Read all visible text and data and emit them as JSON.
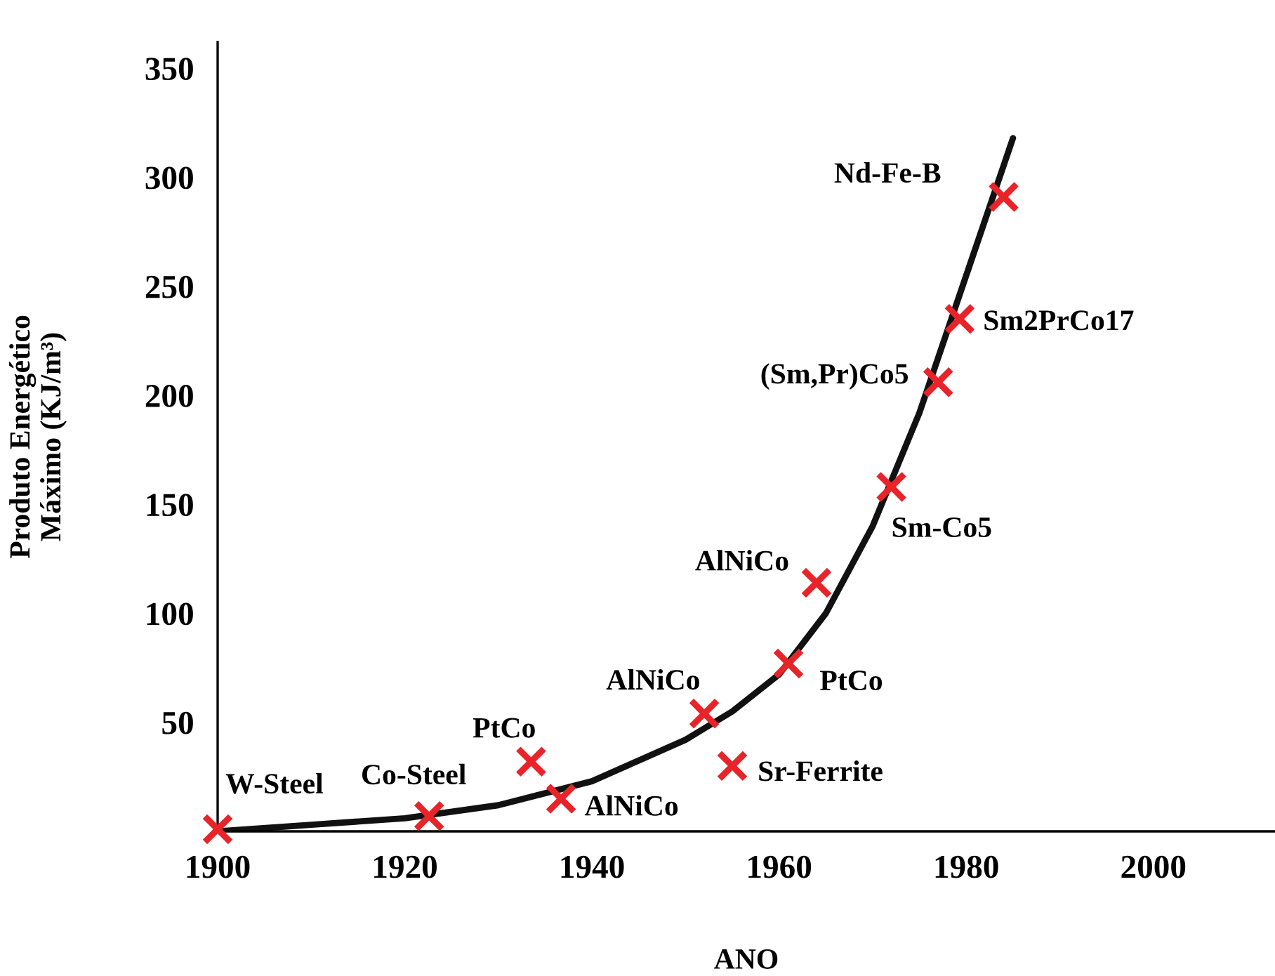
{
  "chart_data": {
    "type": "scatter",
    "xlabel": "ANO",
    "ylabel": "Produto Energético\nMáximo (KJ/m³)",
    "xlim": [
      1900,
      2013
    ],
    "ylim": [
      0,
      362
    ],
    "xticks": [
      1900,
      1920,
      1940,
      1960,
      1980,
      2000
    ],
    "yticks": [
      50,
      100,
      150,
      200,
      250,
      300,
      350
    ],
    "grid": false,
    "legend": false,
    "series": [
      {
        "type": "line",
        "color": "#111111",
        "line_style": "solid",
        "marker": "none",
        "x": [
          1900,
          1910,
          1920,
          1930,
          1940,
          1950,
          1955,
          1960,
          1965,
          1970,
          1975,
          1980,
          1985
        ],
        "values": [
          0,
          3,
          6,
          12,
          23,
          42,
          55,
          72,
          100,
          140,
          192,
          255,
          318
        ]
      },
      {
        "color": "#e8232a",
        "marker": "cross",
        "x": [
          1900,
          1922.6,
          1933.5,
          1936.7,
          1952,
          1955,
          1961,
          1964,
          1972,
          1977,
          1979.3,
          1984
        ],
        "values": [
          1,
          7,
          32,
          15,
          54,
          30,
          77,
          114,
          158,
          206,
          235,
          291
        ]
      }
    ],
    "annotations": [
      {
        "text": "W-Steel",
        "x": 1900,
        "y": 1
      },
      {
        "text": "Co-Steel",
        "x": 1922.6,
        "y": 7
      },
      {
        "text": "PtCo",
        "x": 1933.5,
        "y": 32
      },
      {
        "text": "AlNiCo",
        "x": 1936.7,
        "y": 15
      },
      {
        "text": "AlNiCo",
        "x": 1952,
        "y": 54
      },
      {
        "text": "Sr-Ferrite",
        "x": 1955,
        "y": 30
      },
      {
        "text": "PtCo",
        "x": 1961,
        "y": 77
      },
      {
        "text": "AlNiCo",
        "x": 1964,
        "y": 114
      },
      {
        "text": "Sm-Co5",
        "x": 1972,
        "y": 158
      },
      {
        "text": "(Sm,Pr)Co5",
        "x": 1977,
        "y": 206
      },
      {
        "text": "Sm2PrCo17",
        "x": 1979.3,
        "y": 235
      },
      {
        "text": "Nd-Fe-B",
        "x": 1984,
        "y": 291
      }
    ]
  }
}
